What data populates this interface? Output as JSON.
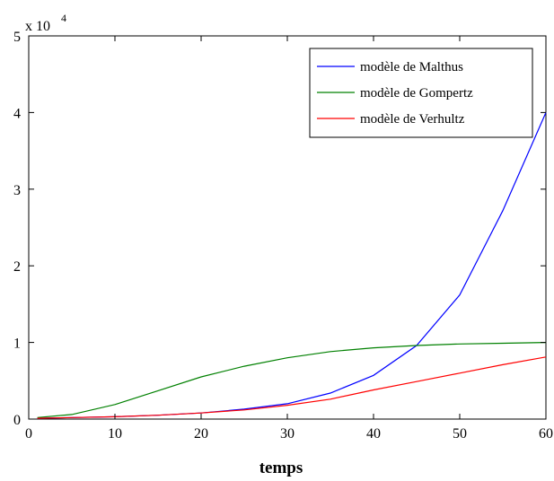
{
  "chart_data": {
    "type": "line",
    "title": "",
    "xlabel": "temps",
    "ylabel": "",
    "y_multiplier": "x 10",
    "y_multiplier_exponent": "4",
    "xlim": [
      0,
      60
    ],
    "ylim": [
      0,
      5
    ],
    "x_ticks": [
      0,
      10,
      20,
      30,
      40,
      50,
      60
    ],
    "y_ticks": [
      0,
      1,
      2,
      3,
      4,
      5
    ],
    "grid": false,
    "legend_position": "top-right",
    "series": [
      {
        "name": "modèle de Malthus",
        "color": "#0000ff",
        "x": [
          1,
          5,
          10,
          15,
          20,
          25,
          30,
          35,
          40,
          45,
          50,
          55,
          60
        ],
        "y": [
          0.01,
          0.02,
          0.03,
          0.05,
          0.08,
          0.13,
          0.2,
          0.34,
          0.57,
          0.96,
          1.62,
          2.72,
          4.0
        ]
      },
      {
        "name": "modèle de Gompertz",
        "color": "#008000",
        "x": [
          1,
          5,
          10,
          15,
          20,
          25,
          30,
          35,
          40,
          45,
          50,
          55,
          60
        ],
        "y": [
          0.02,
          0.06,
          0.19,
          0.37,
          0.55,
          0.69,
          0.8,
          0.88,
          0.93,
          0.96,
          0.98,
          0.99,
          1.0
        ]
      },
      {
        "name": "modèle de Verhultz",
        "color": "#ff0000",
        "x": [
          1,
          5,
          10,
          15,
          20,
          25,
          30,
          35,
          40,
          45,
          50,
          55,
          60
        ],
        "y": [
          0.01,
          0.02,
          0.03,
          0.05,
          0.08,
          0.12,
          0.18,
          0.26,
          0.38,
          0.49,
          0.6,
          0.71,
          0.81
        ]
      }
    ]
  }
}
